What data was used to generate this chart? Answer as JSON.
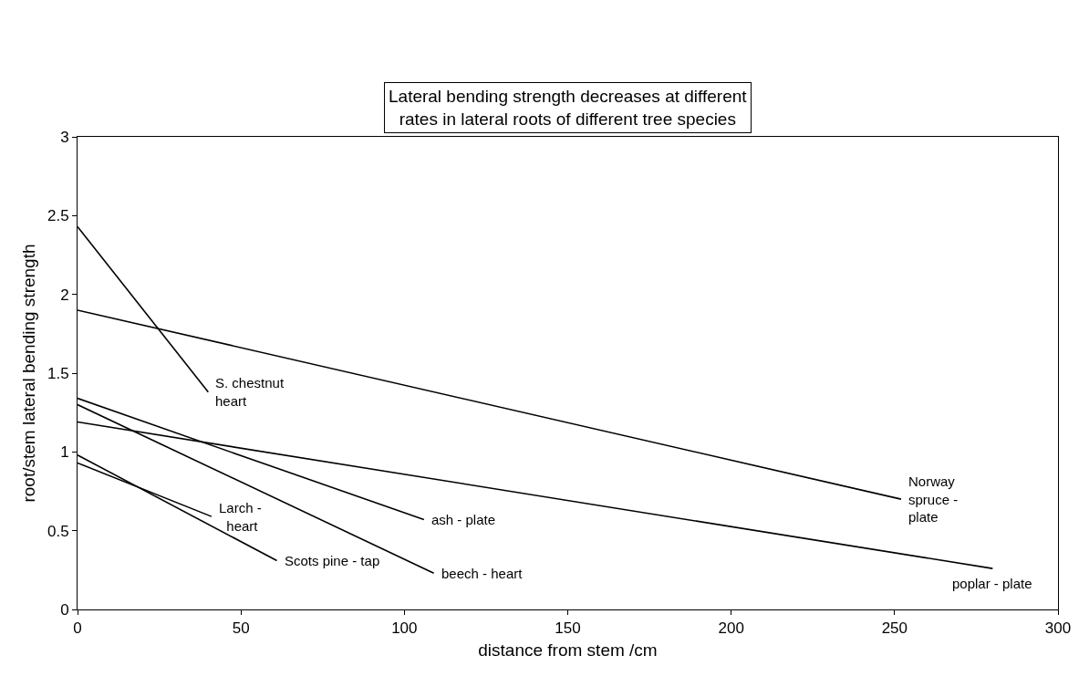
{
  "chart_data": {
    "type": "line",
    "title": "Lateral bending strength decreases at different\nrates in lateral roots of different tree species",
    "xlabel": "distance from stem /cm",
    "ylabel": "root/stem lateral bending strength",
    "xlim": [
      0,
      300
    ],
    "xticks": [
      0,
      50,
      100,
      150,
      200,
      250,
      300
    ],
    "ylim": [
      0,
      3
    ],
    "yticks": [
      0,
      0.5,
      1,
      1.5,
      2,
      2.5,
      3
    ],
    "legend": false,
    "marker": "none",
    "line_style": "solid",
    "series": [
      {
        "name": "S. chestnut\nheart",
        "color": "#000000",
        "x": [
          0,
          40
        ],
        "values": [
          2.43,
          1.38
        ]
      },
      {
        "name": "Norway\nspruce -\nplate",
        "color": "#000000",
        "x": [
          0,
          252
        ],
        "values": [
          1.9,
          0.7
        ]
      },
      {
        "name": "poplar - plate",
        "color": "#000000",
        "x": [
          0,
          280
        ],
        "values": [
          1.19,
          0.26
        ]
      },
      {
        "name": "ash - plate",
        "color": "#000000",
        "x": [
          0,
          106
        ],
        "values": [
          1.34,
          0.57
        ]
      },
      {
        "name": "beech - heart",
        "color": "#000000",
        "x": [
          0,
          109
        ],
        "values": [
          1.3,
          0.23
        ]
      },
      {
        "name": "Larch -\n  heart",
        "color": "#000000",
        "x": [
          0,
          41
        ],
        "values": [
          0.93,
          0.59
        ]
      },
      {
        "name": "Scots pine - tap",
        "color": "#000000",
        "x": [
          0,
          61
        ],
        "values": [
          0.98,
          0.31
        ]
      }
    ]
  }
}
